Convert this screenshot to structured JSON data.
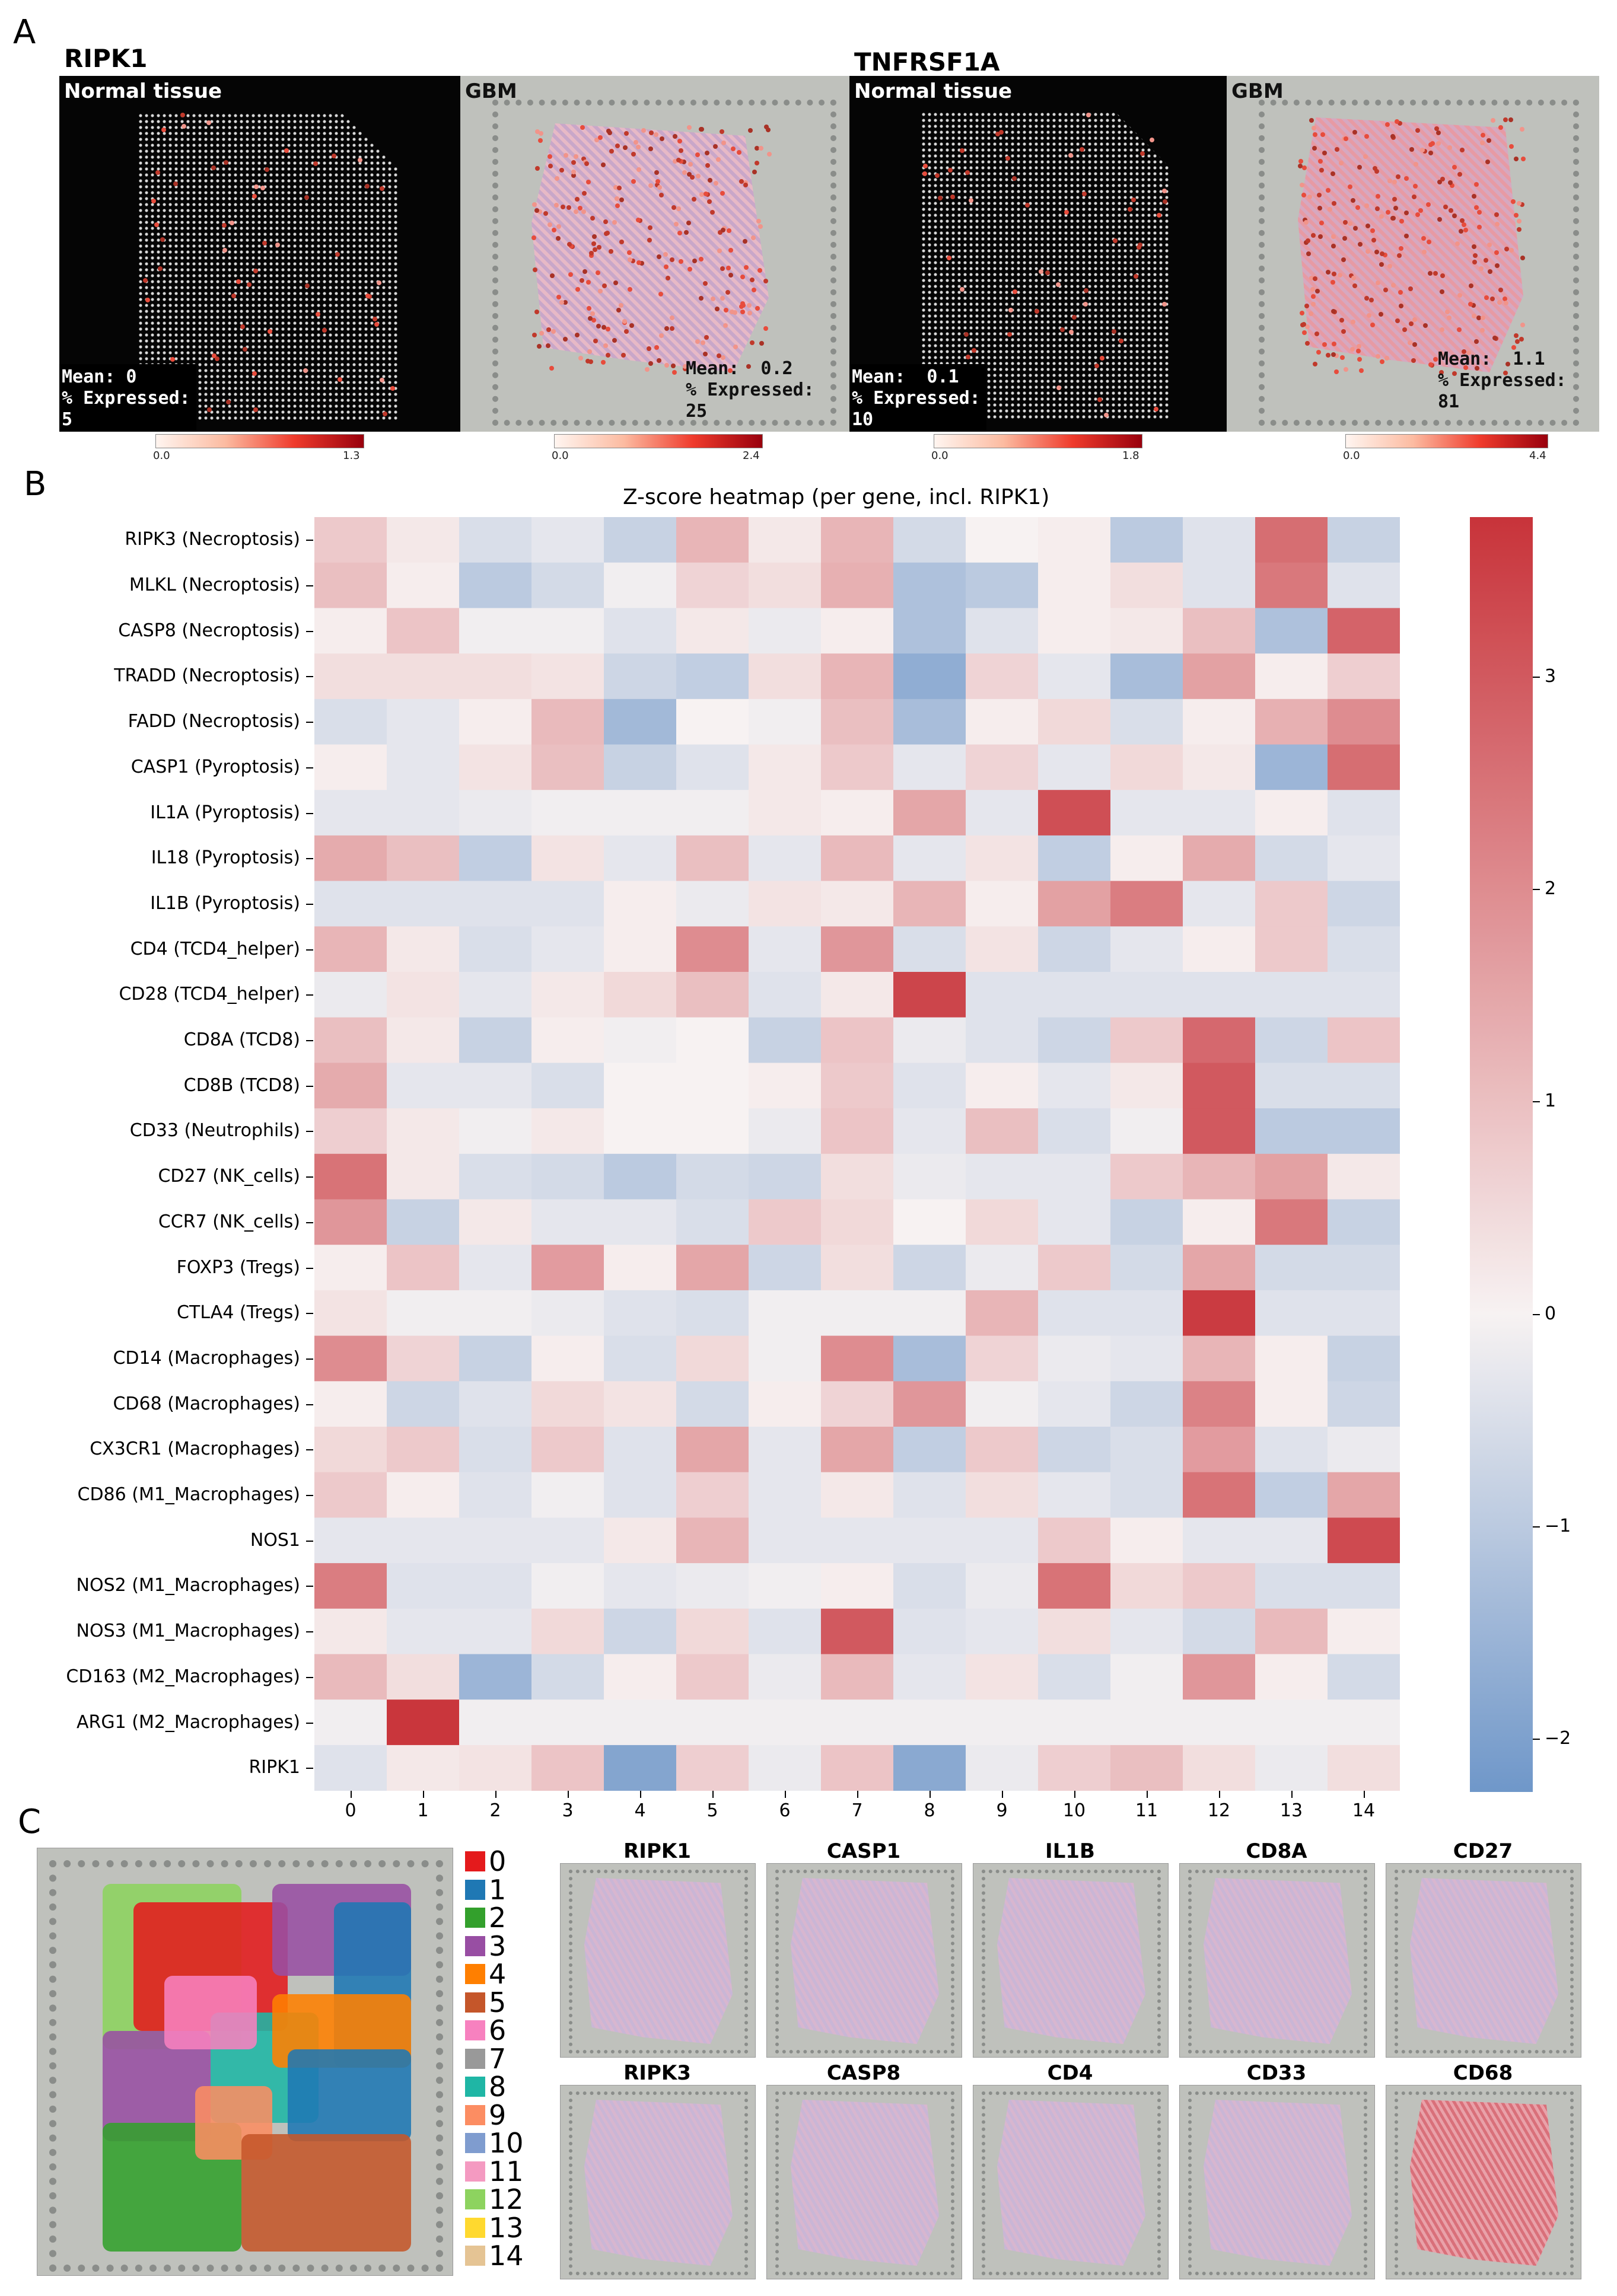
{
  "panel_a": {
    "letter": "A",
    "genes": [
      {
        "name": "RIPK1",
        "panels": [
          {
            "title": "Normal tissue",
            "theme": "dark",
            "mean": "Mean: 0",
            "expressed_label": "% Expressed:",
            "expressed_value": "5",
            "cbar_min": "0.0",
            "cbar_max": "1.3"
          },
          {
            "title": "GBM",
            "theme": "light",
            "mean": "Mean:  0.2",
            "expressed_label": "% Expressed:",
            "expressed_value": "25",
            "cbar_min": "0.0",
            "cbar_max": "2.4"
          }
        ]
      },
      {
        "name": "TNFRSF1A",
        "panels": [
          {
            "title": "Normal tissue",
            "theme": "dark",
            "mean": "Mean:  0.1",
            "expressed_label": "% Expressed:",
            "expressed_value": "10",
            "cbar_min": "0.0",
            "cbar_max": "1.8"
          },
          {
            "title": "GBM",
            "theme": "light",
            "mean": "Mean:  1.1",
            "expressed_label": "% Expressed:",
            "expressed_value": "81",
            "cbar_min": "0.0",
            "cbar_max": "4.4"
          }
        ]
      }
    ]
  },
  "panel_b": {
    "letter": "B"
  },
  "panel_c": {
    "letter": "C",
    "cluster_legend": [
      "0",
      "1",
      "2",
      "3",
      "4",
      "5",
      "6",
      "7",
      "8",
      "9",
      "10",
      "11",
      "12",
      "13",
      "14"
    ],
    "cluster_colors": [
      "#e41a1c",
      "#1f78b4",
      "#33a02c",
      "#984ea3",
      "#ff7f00",
      "#c5562a",
      "#f781bf",
      "#999999",
      "#1fb6a5",
      "#fc8d62",
      "#7f9ccf",
      "#f49ac1",
      "#8dd35f",
      "#ffd92f",
      "#e5c494"
    ],
    "genes_row1": [
      "RIPK1",
      "CASP1",
      "IL1B",
      "CD8A",
      "CD27"
    ],
    "genes_row2": [
      "RIPK3",
      "CASP8",
      "CD4",
      "CD33",
      "CD68"
    ]
  },
  "chart_data": {
    "type": "heatmap",
    "title": "Z-score heatmap (per gene, incl. RIPK1)",
    "xlabel": "",
    "ylabel": "",
    "columns": [
      "0",
      "1",
      "2",
      "3",
      "4",
      "5",
      "6",
      "7",
      "8",
      "9",
      "10",
      "11",
      "12",
      "13",
      "14"
    ],
    "rows": [
      "RIPK3 (Necroptosis)",
      "MLKL (Necroptosis)",
      "CASP8 (Necroptosis)",
      "TRADD (Necroptosis)",
      "FADD (Necroptosis)",
      "CASP1 (Pyroptosis)",
      "IL1A (Pyroptosis)",
      "IL18 (Pyroptosis)",
      "IL1B (Pyroptosis)",
      "CD4 (TCD4_helper)",
      "CD28 (TCD4_helper)",
      "CD8A (TCD8)",
      "CD8B (TCD8)",
      "CD33 (Neutrophils)",
      "CD27 (NK_cells)",
      "CCR7 (NK_cells)",
      "FOXP3 (Tregs)",
      "CTLA4 (Tregs)",
      "CD14 (Macrophages)",
      "CD68 (Macrophages)",
      "CX3CR1 (Macrophages)",
      "CD86 (M1_Macrophages)",
      "NOS1",
      "NOS2 (M1_Macrophages)",
      "NOS3 (M1_Macrophages)",
      "CD163 (M2_Macrophages)",
      "ARG1 (M2_Macrophages)",
      "RIPK1"
    ],
    "values": [
      [
        0.8,
        0.2,
        -0.5,
        -0.3,
        -0.8,
        1.2,
        0.2,
        1.2,
        -0.6,
        0.0,
        0.1,
        -1.0,
        -0.4,
        2.6,
        -0.8
      ],
      [
        1.0,
        0.1,
        -1.0,
        -0.6,
        -0.1,
        0.6,
        0.4,
        1.3,
        -1.2,
        -1.0,
        0.1,
        0.4,
        -0.4,
        2.4,
        -0.4
      ],
      [
        0.1,
        0.9,
        -0.1,
        -0.1,
        -0.4,
        0.2,
        -0.2,
        0.1,
        -1.2,
        -0.4,
        0.1,
        0.2,
        1.0,
        -1.2,
        2.8
      ],
      [
        0.4,
        0.4,
        0.4,
        0.3,
        -0.7,
        -0.9,
        0.4,
        1.2,
        -1.7,
        0.6,
        -0.3,
        -1.3,
        1.6,
        0.1,
        0.7
      ],
      [
        -0.5,
        -0.3,
        0.1,
        1.1,
        -1.4,
        0.0,
        -0.1,
        1.0,
        -1.3,
        0.1,
        0.5,
        -0.5,
        0.1,
        1.3,
        2.0
      ],
      [
        0.1,
        -0.3,
        0.3,
        1.0,
        -0.8,
        -0.4,
        0.2,
        0.8,
        -0.3,
        0.6,
        -0.3,
        0.5,
        0.2,
        -1.5,
        2.6
      ],
      [
        -0.3,
        -0.3,
        -0.2,
        -0.1,
        -0.1,
        -0.1,
        0.2,
        0.1,
        1.5,
        -0.3,
        3.2,
        -0.3,
        -0.3,
        0.1,
        -0.4
      ],
      [
        1.4,
        1.0,
        -0.9,
        0.3,
        -0.3,
        1.0,
        -0.3,
        1.1,
        -0.3,
        0.3,
        -0.9,
        0.1,
        1.4,
        -0.6,
        -0.3
      ],
      [
        -0.4,
        -0.4,
        -0.4,
        -0.4,
        0.1,
        -0.2,
        0.3,
        0.2,
        1.2,
        0.1,
        1.6,
        2.3,
        -0.3,
        0.8,
        -0.7
      ],
      [
        1.2,
        0.2,
        -0.5,
        -0.3,
        0.1,
        2.0,
        -0.3,
        1.8,
        -0.5,
        0.3,
        -0.7,
        -0.3,
        0.1,
        0.8,
        -0.5
      ],
      [
        -0.2,
        0.3,
        -0.3,
        0.2,
        0.5,
        1.0,
        -0.4,
        0.2,
        3.4,
        -0.4,
        -0.4,
        -0.4,
        -0.4,
        -0.4,
        -0.4
      ],
      [
        1.0,
        0.2,
        -0.8,
        0.1,
        -0.1,
        0.0,
        -0.8,
        0.9,
        -0.2,
        -0.4,
        -0.7,
        0.8,
        2.7,
        -0.7,
        0.9
      ],
      [
        1.4,
        -0.3,
        -0.3,
        -0.5,
        0.0,
        0.0,
        0.1,
        0.8,
        -0.4,
        0.1,
        -0.3,
        0.2,
        3.0,
        -0.5,
        -0.5
      ],
      [
        0.7,
        0.2,
        -0.1,
        0.2,
        0.0,
        0.0,
        -0.2,
        0.9,
        -0.3,
        1.0,
        -0.5,
        -0.1,
        3.0,
        -1.0,
        -1.0
      ],
      [
        2.5,
        0.2,
        -0.5,
        -0.6,
        -1.0,
        -0.6,
        -0.7,
        0.4,
        -0.2,
        -0.3,
        -0.3,
        0.8,
        1.2,
        1.6,
        0.2
      ],
      [
        1.8,
        -0.8,
        0.2,
        -0.3,
        -0.3,
        -0.5,
        0.8,
        0.5,
        0.0,
        0.5,
        -0.3,
        -0.8,
        0.1,
        2.4,
        -0.8
      ],
      [
        0.1,
        0.9,
        -0.3,
        1.7,
        0.1,
        1.5,
        -0.7,
        0.4,
        -0.7,
        -0.2,
        0.8,
        -0.6,
        1.5,
        -0.6,
        -0.6
      ],
      [
        0.3,
        -0.1,
        -0.1,
        -0.2,
        -0.4,
        -0.5,
        -0.1,
        -0.1,
        -0.1,
        1.2,
        -0.4,
        -0.4,
        3.6,
        -0.4,
        -0.4
      ],
      [
        2.0,
        0.6,
        -0.8,
        0.1,
        -0.5,
        0.5,
        -0.1,
        2.0,
        -1.3,
        0.6,
        -0.2,
        -0.3,
        1.2,
        0.1,
        -0.8
      ],
      [
        0.1,
        -0.7,
        -0.4,
        0.5,
        0.3,
        -0.6,
        0.1,
        0.6,
        1.8,
        -0.1,
        -0.3,
        -0.7,
        2.2,
        0.1,
        -0.7
      ],
      [
        0.5,
        0.8,
        -0.5,
        0.8,
        -0.4,
        1.5,
        -0.3,
        1.5,
        -0.9,
        0.8,
        -0.7,
        -0.5,
        1.7,
        -0.4,
        -0.2
      ],
      [
        0.8,
        0.1,
        -0.4,
        -0.1,
        -0.4,
        0.7,
        -0.3,
        0.2,
        -0.4,
        0.4,
        -0.3,
        -0.5,
        2.5,
        -0.9,
        1.5
      ],
      [
        -0.3,
        -0.3,
        -0.3,
        -0.3,
        0.2,
        1.2,
        -0.3,
        -0.3,
        -0.3,
        -0.3,
        0.8,
        0.1,
        -0.3,
        -0.3,
        3.3
      ],
      [
        2.3,
        -0.4,
        -0.4,
        -0.1,
        -0.3,
        -0.2,
        -0.1,
        0.1,
        -0.5,
        -0.2,
        2.5,
        0.5,
        0.8,
        -0.5,
        -0.5
      ],
      [
        0.2,
        -0.3,
        -0.3,
        0.5,
        -0.7,
        0.5,
        -0.4,
        3.0,
        -0.4,
        -0.3,
        0.4,
        -0.3,
        -0.6,
        1.1,
        0.1
      ],
      [
        1.1,
        0.4,
        -1.5,
        -0.6,
        0.1,
        0.8,
        -0.2,
        1.1,
        -0.3,
        0.3,
        -0.5,
        -0.1,
        1.8,
        0.1,
        -0.6
      ],
      [
        -0.1,
        3.7,
        -0.1,
        -0.1,
        -0.1,
        -0.1,
        -0.1,
        -0.1,
        -0.1,
        -0.1,
        -0.1,
        -0.1,
        -0.1,
        -0.1,
        -0.1
      ],
      [
        -0.4,
        0.2,
        0.3,
        0.9,
        -1.9,
        0.7,
        -0.2,
        0.9,
        -1.8,
        -0.2,
        0.7,
        1.0,
        0.4,
        -0.2,
        0.4
      ]
    ],
    "colorbar": {
      "range": [
        -2.25,
        3.75
      ],
      "ticks": [
        3,
        2,
        1,
        0,
        -1,
        -2
      ],
      "tick_labels": [
        "3",
        "2",
        "1",
        "0",
        "−1",
        "−2"
      ]
    },
    "colormap": {
      "low": "#6f97c9",
      "mid": "#f7f2f2",
      "high": "#c8333a"
    }
  }
}
